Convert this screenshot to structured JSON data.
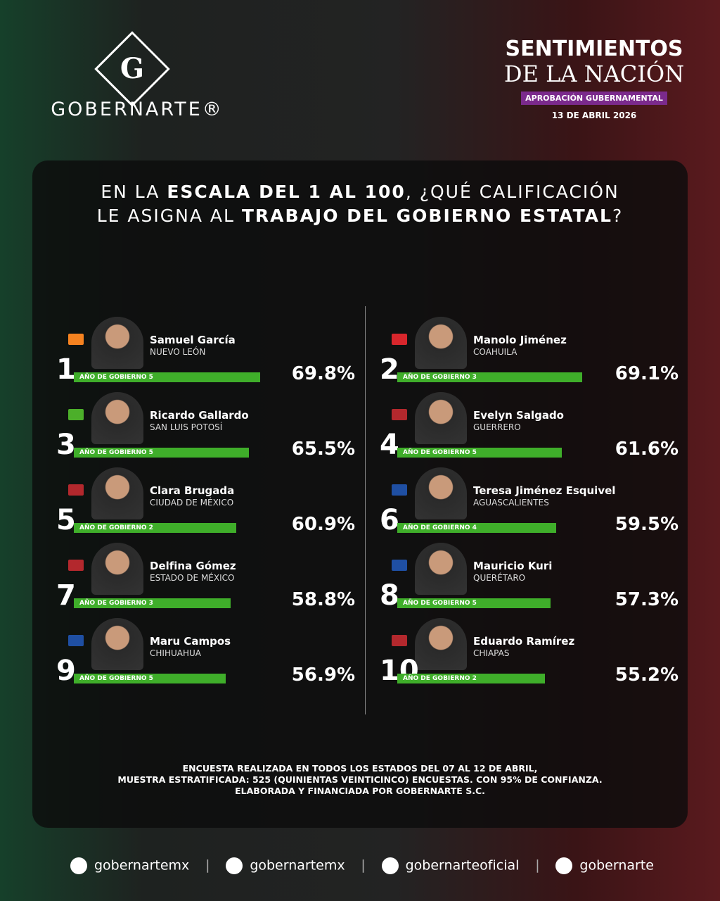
{
  "header": {
    "logo_letter": "G",
    "brand": "GOBERNARTE®",
    "title_line1": "SENTIMIENTOS",
    "title_line2": "DE LA NACIÓN",
    "badge": "APROBACIÓN GUBERNAMENTAL",
    "date": "13 DE ABRIL 2026"
  },
  "question": {
    "lines": [
      [
        {
          "text": "EN LA ",
          "bold": false
        },
        {
          "text": "ESCALA DEL 1 AL 100",
          "bold": true
        },
        {
          "text": ", ¿QUÉ CALIFICACIÓN",
          "bold": false
        }
      ],
      [
        {
          "text": "LE ASIGNA AL ",
          "bold": false
        },
        {
          "text": "TRABAJO DEL GOBIERNO ESTATAL",
          "bold": true
        },
        {
          "text": "?",
          "bold": false
        }
      ]
    ]
  },
  "bar_color": "#3fae2a",
  "entries": [
    {
      "rank": 1,
      "name": "Samuel García",
      "state": "NUEVO LEÓN",
      "party_color": "#f58220",
      "term": "AÑO DE GOBIERNO 5",
      "value": 69.8,
      "value_label": "69.8%"
    },
    {
      "rank": 2,
      "name": "Manolo Jiménez",
      "state": "COAHUILA",
      "party_color": "#d8262c",
      "term": "AÑO DE GOBIERNO 3",
      "value": 69.1,
      "value_label": "69.1%"
    },
    {
      "rank": 3,
      "name": "Ricardo Gallardo",
      "state": "SAN LUIS POTOSÍ",
      "party_color": "#4caf2a",
      "term": "AÑO DE GOBIERNO 5",
      "value": 65.5,
      "value_label": "65.5%"
    },
    {
      "rank": 4,
      "name": "Evelyn Salgado",
      "state": "GUERRERO",
      "party_color": "#b3282d",
      "term": "AÑO DE GOBIERNO 5",
      "value": 61.6,
      "value_label": "61.6%"
    },
    {
      "rank": 5,
      "name": "Clara Brugada",
      "state": "CIUDAD DE MÉXICO",
      "party_color": "#b3282d",
      "term": "AÑO DE GOBIERNO 2",
      "value": 60.9,
      "value_label": "60.9%"
    },
    {
      "rank": 6,
      "name": "Teresa Jiménez Esquivel",
      "state": "AGUASCALIENTES",
      "party_color": "#1f4fa3",
      "term": "AÑO DE GOBIERNO 4",
      "value": 59.5,
      "value_label": "59.5%"
    },
    {
      "rank": 7,
      "name": "Delfina Gómez",
      "state": "ESTADO DE MÉXICO",
      "party_color": "#b3282d",
      "term": "AÑO DE GOBIERNO 3",
      "value": 58.8,
      "value_label": "58.8%"
    },
    {
      "rank": 8,
      "name": "Mauricio Kuri",
      "state": "QUERÉTARO",
      "party_color": "#1f4fa3",
      "term": "AÑO DE GOBIERNO 5",
      "value": 57.3,
      "value_label": "57.3%"
    },
    {
      "rank": 9,
      "name": "Maru Campos",
      "state": "CHIHUAHUA",
      "party_color": "#1f4fa3",
      "term": "AÑO DE GOBIERNO 5",
      "value": 56.9,
      "value_label": "56.9%"
    },
    {
      "rank": 10,
      "name": "Eduardo Ramírez",
      "state": "CHIAPAS",
      "party_color": "#b3282d",
      "term": "AÑO DE GOBIERNO 2",
      "value": 55.2,
      "value_label": "55.2%"
    }
  ],
  "footer": {
    "lines": [
      "ENCUESTA REALIZADA EN TODOS LOS ESTADOS DEL 07 AL 12 DE ABRIL,",
      "MUESTRA ESTRATIFICADA: 525 (QUINIENTAS VEINTICINCO) ENCUESTAS. CON 95% DE CONFIANZA.",
      "ELABORADA Y FINANCIADA POR GOBERNARTE S.C."
    ]
  },
  "socials": [
    "gobernartemx",
    "gobernartemx",
    "gobernarteoficial",
    "gobernarte"
  ]
}
